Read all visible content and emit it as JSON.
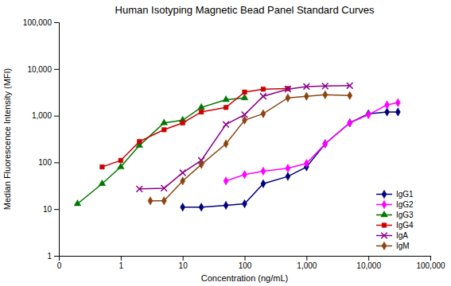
{
  "chart_data": {
    "type": "line",
    "title": "Human Isotyping Magnetic Bead Panel Standard Curves",
    "x_label": "Concentration (ng/mL)",
    "y_label": "Median Fluorescence Intensity (MFI)",
    "log": true,
    "grid": false,
    "legend": "lower right",
    "xlim": [
      0.1,
      100000
    ],
    "ylim": [
      1,
      100000
    ],
    "xticks": [
      {
        "value": 0.1,
        "label": "0"
      },
      1,
      10,
      100,
      {
        "value": 1000,
        "label": "1,000"
      },
      {
        "value": 10000,
        "label": "10,000"
      },
      {
        "value": 100000,
        "label": "100,000"
      }
    ],
    "yticks": [
      1,
      10,
      100,
      {
        "value": 1000,
        "label": "1,000"
      },
      {
        "value": 10000,
        "label": "10,000"
      },
      {
        "value": 100000,
        "label": "100,000"
      }
    ],
    "series": [
      {
        "name": "IgG1",
        "color": "#00007F",
        "marker": "diamond",
        "x": [
          10,
          20,
          50,
          100,
          200,
          500,
          1000,
          2000,
          5000,
          10000,
          20000,
          30000
        ],
        "values": [
          11,
          11,
          12,
          13,
          35,
          50,
          80,
          250,
          700,
          1100,
          1200,
          1200
        ]
      },
      {
        "name": "IgG2",
        "color": "#FF00FF",
        "marker": "diamond",
        "x": [
          50,
          100,
          200,
          500,
          1000,
          2000,
          5000,
          10000,
          20000,
          30000
        ],
        "values": [
          40,
          55,
          65,
          75,
          95,
          250,
          700,
          1050,
          1700,
          1900
        ]
      },
      {
        "name": "IgG3",
        "color": "#007700",
        "marker": "triangle",
        "x": [
          0.2,
          0.5,
          1,
          2,
          5,
          10,
          20,
          50,
          100
        ],
        "values": [
          13,
          35,
          80,
          230,
          700,
          800,
          1500,
          2200,
          2400
        ]
      },
      {
        "name": "IgG4",
        "color": "#CC0000",
        "marker": "square",
        "x": [
          0.5,
          1,
          2,
          5,
          10,
          20,
          50,
          100,
          200,
          500
        ],
        "values": [
          80,
          110,
          280,
          500,
          700,
          1200,
          1500,
          3200,
          3700,
          3800
        ]
      },
      {
        "name": "IgA",
        "color": "#8B008B",
        "marker": "x",
        "x": [
          2,
          5,
          10,
          20,
          50,
          100,
          200,
          500,
          1000,
          2000,
          5000
        ],
        "values": [
          27,
          28,
          60,
          110,
          650,
          1050,
          2600,
          3700,
          4200,
          4300,
          4400
        ]
      },
      {
        "name": "IgM",
        "color": "#8B4513",
        "marker": "diamond",
        "x": [
          3,
          5,
          10,
          20,
          50,
          100,
          200,
          500,
          1000,
          2000,
          5000
        ],
        "values": [
          15,
          15,
          40,
          90,
          250,
          800,
          1100,
          2400,
          2600,
          2800,
          2700
        ]
      }
    ]
  }
}
